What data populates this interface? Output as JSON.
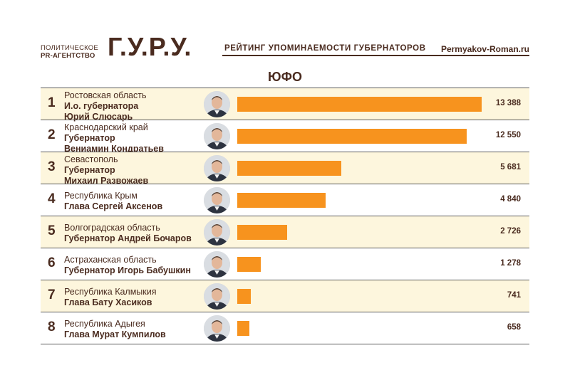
{
  "header": {
    "logo_line1": "ПОЛИТИЧЕСКОЕ",
    "logo_line2": "PR-АГЕНТСТВО",
    "logo_big": "Г.У.Р.У.",
    "title": "РЕЙТИНГ УПОМИНАЕМОСТИ ГУБЕРНАТОРОВ",
    "site": "Permyakov-Roman.ru"
  },
  "colors": {
    "bar": "#f7931e",
    "text": "#4a2b1f",
    "stripe": "#fdf6dd"
  },
  "chart_data": {
    "type": "bar",
    "orientation": "horizontal",
    "title": "ЮФО",
    "xlim": [
      0,
      13388
    ],
    "rows": [
      {
        "rank": "1",
        "region": "Ростовская область",
        "line2": "И.о. губернатора",
        "line3": "Юрий Слюсарь",
        "value": 13388,
        "value_label": "13 388"
      },
      {
        "rank": "2",
        "region": "Краснодарский край",
        "line2": "Губернатор",
        "line3": "Вениамин Кондратьев",
        "value": 12550,
        "value_label": "12 550"
      },
      {
        "rank": "3",
        "region": "Севастополь",
        "line2": "Губернатор",
        "line3": "Михаил Развожаев",
        "value": 5681,
        "value_label": "5 681"
      },
      {
        "rank": "4",
        "region": "Республика Крым",
        "line2": "Глава Сергей Аксенов",
        "line3": "",
        "value": 4840,
        "value_label": "4 840"
      },
      {
        "rank": "5",
        "region": "Волгоградская область",
        "line2": "Губернатор Андрей Бочаров",
        "line3": "",
        "value": 2726,
        "value_label": "2 726"
      },
      {
        "rank": "6",
        "region": "Астраханская область",
        "line2": "Губернатор Игорь Бабушкин",
        "line3": "",
        "value": 1278,
        "value_label": "1 278"
      },
      {
        "rank": "7",
        "region": "Республика Калмыкия",
        "line2": "Глава Бату Хасиков",
        "line3": "",
        "value": 741,
        "value_label": "741"
      },
      {
        "rank": "8",
        "region": "Республика Адыгея",
        "line2": "Глава Мурат Кумпилов",
        "line3": "",
        "value": 658,
        "value_label": "658"
      }
    ]
  }
}
